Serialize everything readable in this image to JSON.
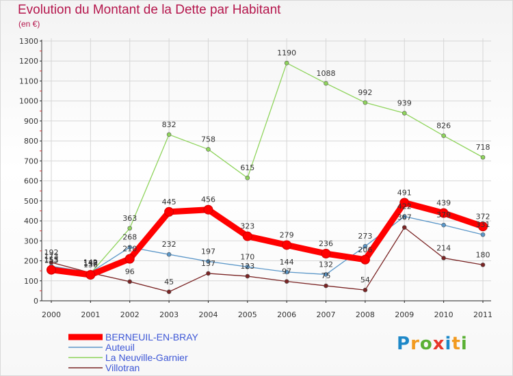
{
  "title": "Evolution du Montant de la Dette par Habitant",
  "subtitle": "(en €)",
  "logo": {
    "letters": [
      "P",
      "r",
      "o",
      "x",
      "i",
      "t",
      "i"
    ],
    "colors": [
      "#1e88c8",
      "#f29a1f",
      "#5ab034",
      "#e8362a",
      "#1e88c8",
      "#f29a1f",
      "#5ab034"
    ]
  },
  "chart_data": {
    "type": "line",
    "title": "Evolution du Montant de la Dette par Habitant",
    "ylabel": "(en €)",
    "xlabel": "",
    "x": [
      "2000",
      "2001",
      "2002",
      "2003",
      "2004",
      "2005",
      "2006",
      "2007",
      "2008",
      "2009",
      "2010",
      "2011"
    ],
    "ylim": [
      0,
      1300
    ],
    "yticks": [
      0,
      100,
      200,
      300,
      400,
      500,
      600,
      700,
      800,
      900,
      1000,
      1100,
      1200,
      1300
    ],
    "grid": true,
    "legend_position": "bottom-left",
    "series": [
      {
        "name": "BERNEUIL-EN-BRAY",
        "color": "#ff0000",
        "values": [
          155,
          130,
          210,
          445,
          456,
          323,
          279,
          236,
          206,
          491,
          439,
          372
        ],
        "labels": [
          "155",
          "130",
          "210",
          "445",
          "456",
          "323",
          "279",
          "236",
          "206",
          "491",
          "439",
          "372"
        ]
      },
      {
        "name": "Auteuil",
        "color": "#5a96c8",
        "values": [
          173,
          142,
          268,
          232,
          197,
          170,
          144,
          132,
          273,
          422,
          379,
          331
        ],
        "labels": [
          "173",
          "142",
          "268",
          "232",
          "197",
          "170",
          "144",
          "132",
          "273",
          "422",
          "379",
          "331"
        ]
      },
      {
        "name": "La Neuville-Garnier",
        "color": "#8fd45c",
        "values": [
          153,
          137,
          363,
          832,
          758,
          615,
          1190,
          1088,
          992,
          939,
          826,
          718
        ],
        "labels": [
          "153",
          "137",
          "363",
          "832",
          "758",
          "615",
          "1190",
          "1088",
          "992",
          "939",
          "826",
          "718"
        ]
      },
      {
        "name": "Villotran",
        "color": "#7a2424",
        "values": [
          192,
          140,
          96,
          45,
          137,
          123,
          97,
          75,
          54,
          367,
          214,
          180
        ],
        "labels": [
          "192",
          "140",
          "96",
          "45",
          "137",
          "123",
          "97",
          "75",
          "54",
          "367",
          "214",
          "180"
        ]
      }
    ]
  }
}
